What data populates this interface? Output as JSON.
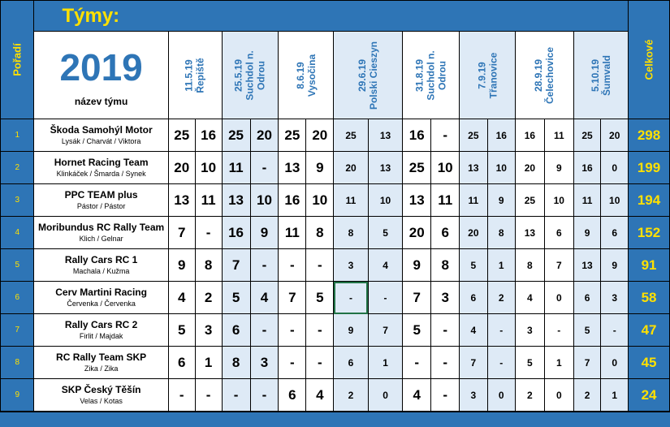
{
  "title": "Týmy:",
  "poradi_label": "Pořadí",
  "celkove_label": "Celkové",
  "year": "2019",
  "team_header": "název týmu",
  "races": [
    {
      "date": "11.5.19",
      "place": "Řepiště",
      "place2": ""
    },
    {
      "date": "25.5.19",
      "place": "Suchdol n.",
      "place2": "Odrou"
    },
    {
      "date": "8.6.19",
      "place": "Vysočina",
      "place2": ""
    },
    {
      "date": "29.6.19",
      "place": "Polski Cieszyn",
      "place2": ""
    },
    {
      "date": "31.8.19",
      "place": "Suchdol n.",
      "place2": "Odrou"
    },
    {
      "date": "7.9.19",
      "place": "Třanovice",
      "place2": ""
    },
    {
      "date": "28.9.19",
      "place": "Čelechovice",
      "place2": ""
    },
    {
      "date": "5.10.19",
      "place": "Šumvald",
      "place2": ""
    }
  ],
  "teams": [
    {
      "rank": "1",
      "name": "Škoda Samohýl Motor",
      "drivers": "Lysák / Charvát / Viktora",
      "scores": [
        "25",
        "16",
        "25",
        "20",
        "25",
        "20",
        "25",
        "13",
        "16",
        "-",
        "25",
        "16",
        "16",
        "11",
        "25",
        "20"
      ],
      "total": "298"
    },
    {
      "rank": "2",
      "name": "Hornet Racing Team",
      "drivers": "Klinkáček / Šmarda / Synek",
      "scores": [
        "20",
        "10",
        "11",
        "-",
        "13",
        "9",
        "20",
        "13",
        "25",
        "10",
        "13",
        "10",
        "20",
        "9",
        "16",
        "0"
      ],
      "total": "199"
    },
    {
      "rank": "3",
      "name": "PPC TEAM plus",
      "drivers": "Pástor / Pástor",
      "scores": [
        "13",
        "11",
        "13",
        "10",
        "16",
        "10",
        "11",
        "10",
        "13",
        "11",
        "11",
        "9",
        "25",
        "10",
        "11",
        "10"
      ],
      "total": "194"
    },
    {
      "rank": "4",
      "name": "Moribundus RC Rally Team",
      "drivers": "Klich / Gelnar",
      "scores": [
        "7",
        "-",
        "16",
        "9",
        "11",
        "8",
        "8",
        "5",
        "20",
        "6",
        "20",
        "8",
        "13",
        "6",
        "9",
        "6"
      ],
      "total": "152"
    },
    {
      "rank": "5",
      "name": "Rally Cars RC 1",
      "drivers": "Machala / Kužma",
      "scores": [
        "9",
        "8",
        "7",
        "-",
        "-",
        "-",
        "3",
        "4",
        "9",
        "8",
        "5",
        "1",
        "8",
        "7",
        "13",
        "9"
      ],
      "total": "91"
    },
    {
      "rank": "6",
      "name": "Cerv Martini Racing",
      "drivers": "Červenka / Červenka",
      "scores": [
        "4",
        "2",
        "5",
        "4",
        "7",
        "5",
        "-",
        "-",
        "7",
        "3",
        "6",
        "2",
        "4",
        "0",
        "6",
        "3"
      ],
      "total": "58"
    },
    {
      "rank": "7",
      "name": "Rally Cars RC 2",
      "drivers": "Firlit / Majdak",
      "scores": [
        "5",
        "3",
        "6",
        "-",
        "-",
        "-",
        "9",
        "7",
        "5",
        "-",
        "4",
        "-",
        "3",
        "-",
        "5",
        "-"
      ],
      "total": "47"
    },
    {
      "rank": "8",
      "name": "RC Rally Team SKP",
      "drivers": "Zika / Zika",
      "scores": [
        "6",
        "1",
        "8",
        "3",
        "-",
        "-",
        "6",
        "1",
        "-",
        "-",
        "7",
        "-",
        "5",
        "1",
        "7",
        "0"
      ],
      "total": "45"
    },
    {
      "rank": "9",
      "name": "SKP Český Těšín",
      "drivers": "Velas / Kotas",
      "scores": [
        "-",
        "-",
        "-",
        "-",
        "6",
        "4",
        "2",
        "0",
        "4",
        "-",
        "3",
        "0",
        "2",
        "0",
        "2",
        "1"
      ],
      "total": "24"
    }
  ]
}
